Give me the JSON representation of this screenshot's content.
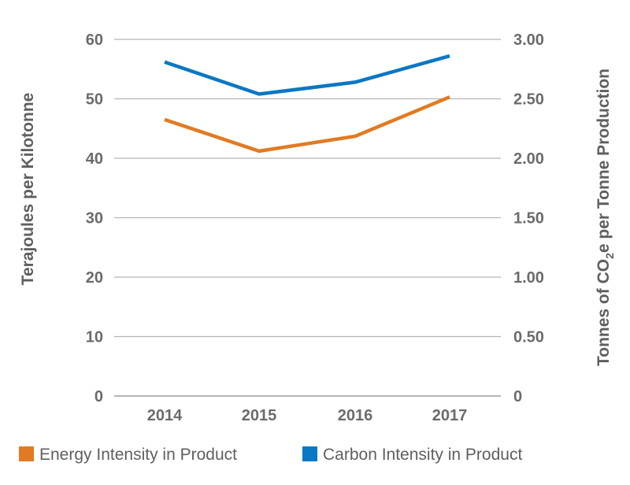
{
  "chart_data": {
    "type": "line",
    "categories": [
      "2014",
      "2015",
      "2016",
      "2017"
    ],
    "y_left": {
      "label": "Terajoules per Kilotonne",
      "ylim": [
        0,
        60
      ],
      "ticks": [
        "0",
        "10",
        "20",
        "30",
        "40",
        "50",
        "60"
      ]
    },
    "y_right": {
      "label_parts": [
        "Tonnes of CO",
        "2",
        "e per Tonne Production"
      ],
      "ylim": [
        0,
        3.0
      ],
      "ticks": [
        "0",
        "0.50",
        "1.00",
        "1.50",
        "2.00",
        "2.50",
        "3.00"
      ]
    },
    "series": [
      {
        "name": "Energy Intensity in Product",
        "axis": "left",
        "color": "#e07b24",
        "values": [
          46.5,
          41.2,
          43.7,
          50.3
        ]
      },
      {
        "name": "Carbon Intensity in Product",
        "axis": "right",
        "color": "#0a77c4",
        "values": [
          2.81,
          2.54,
          2.64,
          2.86
        ]
      }
    ],
    "grid": true,
    "legend_position": "bottom-left"
  }
}
